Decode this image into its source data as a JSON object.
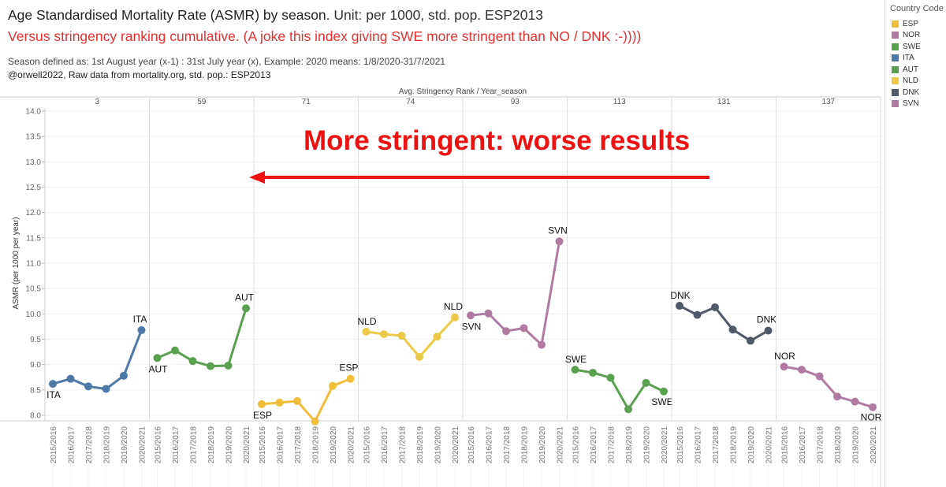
{
  "header": {
    "title_bold": "Age Standardised Mortality Rate (ASMR) by season",
    "title_rest": ". Unit: per 1000, std. pop. ESP2013",
    "subtitle": "Versus stringency ranking cumulative. (A joke this index giving SWE more stringent than NO / DNK :-))))",
    "note_season": "Season defined as: 1st August year (x-1) : 31st July  year (x), Example: 2020 means: 1/8/2020-31/7/2021",
    "note_source": "@orwell2022,  Raw data from mortality.org, std. pop.: ESP2013"
  },
  "legend": {
    "title": "Country Code",
    "items": [
      {
        "code": "ESP",
        "color": "#f1be3c"
      },
      {
        "code": "NOR",
        "color": "#b07aa1"
      },
      {
        "code": "SWE",
        "color": "#59a14f"
      },
      {
        "code": "ITA",
        "color": "#4e79a7"
      },
      {
        "code": "AUT",
        "color": "#59a14f"
      },
      {
        "code": "NLD",
        "color": "#edc948"
      },
      {
        "code": "DNK",
        "color": "#4f5967"
      },
      {
        "code": "SVN",
        "color": "#b07aa1"
      }
    ]
  },
  "annotation": {
    "text": "More stringent: worse results",
    "color": "#ee1111",
    "arrow_direction": "left"
  },
  "chart_data": {
    "type": "line",
    "top_axis_label": "Avg. Stringency Rank / Year_season",
    "ylabel": "ASMR (per 1000 per year)",
    "ylim": [
      7.9,
      14.0
    ],
    "y_ticks": [
      "8.0",
      "8.5",
      "9.0",
      "9.5",
      "10.0",
      "10.5",
      "11.0",
      "11.5",
      "12.0",
      "12.5",
      "13.0",
      "13.5",
      "14.0"
    ],
    "x_seasons": [
      "2015/2016",
      "2016/2017",
      "2017/2018",
      "2018/2019",
      "2019/2020",
      "2020/2021"
    ],
    "grid": true,
    "panels": [
      {
        "rank": "3",
        "country": "ITA",
        "color": "#4e79a7",
        "values": [
          8.62,
          8.72,
          8.57,
          8.52,
          8.78,
          9.68
        ]
      },
      {
        "rank": "59",
        "country": "AUT",
        "color": "#59a14f",
        "values": [
          9.13,
          9.28,
          9.07,
          8.97,
          8.98,
          10.11
        ]
      },
      {
        "rank": "71",
        "country": "ESP",
        "color": "#f1be3c",
        "values": [
          8.22,
          8.25,
          8.28,
          7.88,
          8.58,
          8.72
        ]
      },
      {
        "rank": "74",
        "country": "NLD",
        "color": "#edc948",
        "values": [
          9.65,
          9.6,
          9.57,
          9.15,
          9.55,
          9.93
        ]
      },
      {
        "rank": "93",
        "country": "SVN",
        "color": "#b07aa1",
        "values": [
          9.97,
          10.01,
          9.66,
          9.72,
          9.39,
          11.43
        ]
      },
      {
        "rank": "113",
        "country": "SWE",
        "color": "#59a14f",
        "values": [
          8.9,
          8.84,
          8.74,
          8.12,
          8.64,
          8.47
        ]
      },
      {
        "rank": "131",
        "country": "DNK",
        "color": "#4f5967",
        "values": [
          10.16,
          9.98,
          10.13,
          9.69,
          9.47,
          9.67
        ]
      },
      {
        "rank": "137",
        "country": "NOR",
        "color": "#b07aa1",
        "values": [
          8.96,
          8.9,
          8.77,
          8.37,
          8.27,
          8.16
        ]
      }
    ]
  }
}
